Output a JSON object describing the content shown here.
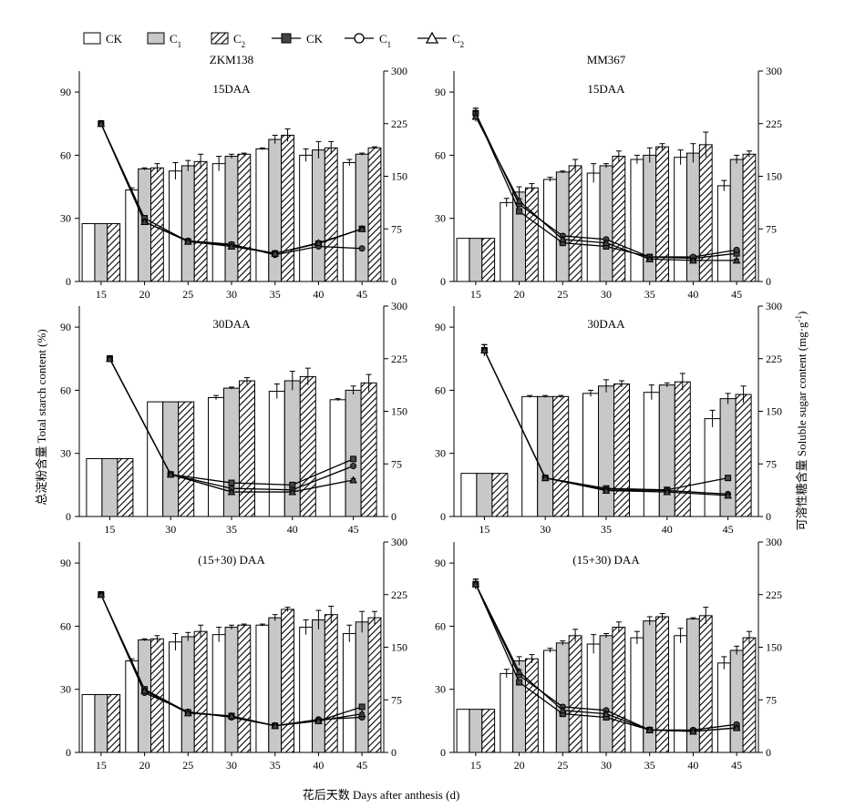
{
  "legend": {
    "bars": [
      {
        "label": "CK",
        "sub": "",
        "pattern": "white"
      },
      {
        "label": "C",
        "sub": "1",
        "pattern": "gray"
      },
      {
        "label": "C",
        "sub": "2",
        "pattern": "hatch"
      }
    ],
    "lines": [
      {
        "label": "CK",
        "sub": "",
        "marker": "square"
      },
      {
        "label": "C",
        "sub": "1",
        "marker": "circle"
      },
      {
        "label": "C",
        "sub": "2",
        "marker": "triangle"
      }
    ]
  },
  "varieties": [
    "ZKM138",
    "MM367"
  ],
  "axes": {
    "left_ticks": [
      "0",
      "30",
      "60",
      "90"
    ],
    "right_ticks": [
      "0",
      "75",
      "150",
      "225",
      "300"
    ],
    "left_label": "总淀粉含量 Total starch content (%)",
    "right_label_main": "可溶性糖含量 Soluble sugar content (mg·g",
    "right_label_sup": "-1",
    "right_label_end": ")",
    "x_label": "花后天数 Days after anthesis (d)"
  },
  "colors": {
    "bar_gray": "#c8c8c8",
    "line_fill": "#444444",
    "stroke": "#000000"
  },
  "chart_data": [
    {
      "type": "bar",
      "panel": "15DAA",
      "variety": "ZKM138",
      "title": "15DAA",
      "categories": [
        "15",
        "20",
        "25",
        "30",
        "35",
        "40",
        "45"
      ],
      "ylim": [
        0,
        100
      ],
      "y2lim": [
        0,
        300
      ],
      "bars": [
        {
          "name": "CK",
          "values": [
            27.5,
            43.5,
            52.5,
            56,
            63,
            60,
            56.5
          ],
          "errors": [
            0,
            1,
            4,
            3.5,
            0.5,
            3,
            1.5
          ]
        },
        {
          "name": "C1",
          "values": [
            27.5,
            53.5,
            55,
            59.5,
            67.5,
            62.5,
            60.5
          ],
          "errors": [
            0,
            0.5,
            2.5,
            1,
            2,
            4,
            0.5
          ]
        },
        {
          "name": "C2",
          "values": [
            27.5,
            54,
            57,
            60.5,
            69.5,
            63.5,
            63.5
          ],
          "errors": [
            0,
            2,
            3.5,
            0.5,
            3,
            3,
            0.5
          ]
        }
      ],
      "lines": [
        {
          "name": "CK",
          "values": [
            225,
            90,
            57,
            52,
            40,
            54,
            75
          ],
          "errors": [
            4,
            4,
            2,
            2,
            2,
            2,
            2
          ]
        },
        {
          "name": "C1",
          "values": [
            225,
            85,
            58,
            53,
            38,
            50,
            47
          ],
          "errors": [
            4,
            3,
            2,
            2,
            2,
            2,
            2
          ]
        },
        {
          "name": "C2",
          "values": [
            225,
            85,
            57,
            50,
            40,
            55,
            75
          ],
          "errors": [
            4,
            3,
            2,
            2,
            2,
            2,
            2
          ]
        }
      ]
    },
    {
      "type": "bar",
      "panel": "15DAA",
      "variety": "MM367",
      "title": "15DAA",
      "categories": [
        "15",
        "20",
        "25",
        "30",
        "35",
        "40",
        "45"
      ],
      "ylim": [
        0,
        100
      ],
      "y2lim": [
        0,
        300
      ],
      "bars": [
        {
          "name": "CK",
          "values": [
            20.5,
            37.5,
            48.5,
            51.5,
            58,
            59,
            45.5
          ],
          "errors": [
            0,
            2,
            1,
            4.5,
            2,
            3.5,
            2.5
          ]
        },
        {
          "name": "C1",
          "values": [
            20.5,
            42.5,
            52,
            55,
            60,
            61,
            58
          ],
          "errors": [
            0,
            2.5,
            0.5,
            1,
            3.5,
            4.5,
            2
          ]
        },
        {
          "name": "C2",
          "values": [
            20.5,
            44.5,
            55,
            59.5,
            64,
            65,
            60.5
          ],
          "errors": [
            0,
            2,
            3,
            2.5,
            1.5,
            6,
            1.5
          ]
        }
      ],
      "lines": [
        {
          "name": "CK",
          "values": [
            240,
            100,
            55,
            50,
            35,
            33,
            40
          ],
          "errors": [
            7,
            3,
            3,
            2,
            2,
            2,
            2
          ]
        },
        {
          "name": "C1",
          "values": [
            240,
            110,
            65,
            60,
            35,
            35,
            45
          ],
          "errors": [
            7,
            3,
            3,
            2,
            2,
            2,
            2
          ]
        },
        {
          "name": "C2",
          "values": [
            235,
            115,
            60,
            55,
            32,
            30,
            30
          ],
          "errors": [
            7,
            3,
            3,
            2,
            2,
            2,
            2
          ]
        }
      ]
    },
    {
      "type": "bar",
      "panel": "30DAA",
      "variety": "ZKM138",
      "title": "30DAA",
      "categories": [
        "15",
        "30",
        "35",
        "40",
        "45"
      ],
      "ylim": [
        0,
        100
      ],
      "y2lim": [
        0,
        300
      ],
      "bars": [
        {
          "name": "CK",
          "values": [
            27.5,
            54.5,
            56.5,
            59.5,
            55.5
          ],
          "errors": [
            0,
            0,
            1,
            3.5,
            0.5
          ]
        },
        {
          "name": "C1",
          "values": [
            27.5,
            54.5,
            61,
            64.5,
            60
          ],
          "errors": [
            0,
            0,
            0.5,
            4.5,
            2
          ]
        },
        {
          "name": "C2",
          "values": [
            27.5,
            54.5,
            64.5,
            66.5,
            63.5
          ],
          "errors": [
            0,
            0,
            1.5,
            4,
            4
          ]
        }
      ],
      "lines": [
        {
          "name": "CK",
          "values": [
            225,
            60,
            48,
            45,
            82
          ],
          "errors": [
            4,
            2,
            2,
            2,
            2
          ]
        },
        {
          "name": "C1",
          "values": [
            225,
            60,
            40,
            38,
            72
          ],
          "errors": [
            4,
            2,
            2,
            2,
            2
          ]
        },
        {
          "name": "C2",
          "values": [
            225,
            60,
            35,
            35,
            52
          ],
          "errors": [
            4,
            2,
            2,
            2,
            2
          ]
        }
      ]
    },
    {
      "type": "bar",
      "panel": "30DAA",
      "variety": "MM367",
      "title": "30DAA",
      "categories": [
        "15",
        "30",
        "35",
        "40",
        "45"
      ],
      "ylim": [
        0,
        100
      ],
      "y2lim": [
        0,
        300
      ],
      "bars": [
        {
          "name": "CK",
          "values": [
            20.5,
            57,
            58.5,
            59,
            46.5
          ],
          "errors": [
            0,
            0.5,
            1.5,
            3.5,
            4
          ]
        },
        {
          "name": "C1",
          "values": [
            20.5,
            57,
            62,
            62.5,
            56
          ],
          "errors": [
            0,
            0.5,
            3,
            1,
            2.5
          ]
        },
        {
          "name": "C2",
          "values": [
            20.5,
            57,
            63,
            64,
            58
          ],
          "errors": [
            0,
            0.5,
            1.5,
            4,
            4
          ]
        }
      ],
      "lines": [
        {
          "name": "CK",
          "values": [
            237,
            55,
            40,
            38,
            55
          ],
          "errors": [
            8,
            2,
            2,
            2,
            2
          ]
        },
        {
          "name": "C1",
          "values": [
            237,
            55,
            38,
            37,
            32
          ],
          "errors": [
            8,
            2,
            2,
            2,
            2
          ]
        },
        {
          "name": "C2",
          "values": [
            237,
            55,
            37,
            35,
            30
          ],
          "errors": [
            8,
            2,
            2,
            2,
            2
          ]
        }
      ]
    },
    {
      "type": "bar",
      "panel": "(15+30) DAA",
      "variety": "ZKM138",
      "title": "(15+30) DAA",
      "categories": [
        "15",
        "20",
        "25",
        "30",
        "35",
        "40",
        "45"
      ],
      "ylim": [
        0,
        100
      ],
      "y2lim": [
        0,
        300
      ],
      "bars": [
        {
          "name": "CK",
          "values": [
            27.5,
            43.5,
            52.5,
            56,
            60.5,
            59.5,
            56.5
          ],
          "errors": [
            0,
            1,
            4,
            3.5,
            0.5,
            3.5,
            4
          ]
        },
        {
          "name": "C1",
          "values": [
            27.5,
            53.5,
            55,
            59.5,
            64,
            63,
            62
          ],
          "errors": [
            0,
            0.5,
            2,
            1,
            1.5,
            4.5,
            5
          ]
        },
        {
          "name": "C2",
          "values": [
            27.5,
            54,
            57.5,
            60.5,
            68,
            65.5,
            64
          ],
          "errors": [
            0,
            1.5,
            3,
            0.5,
            1,
            4,
            3
          ]
        }
      ],
      "lines": [
        {
          "name": "CK",
          "values": [
            225,
            90,
            57,
            52,
            38,
            45,
            65
          ],
          "errors": [
            4,
            3,
            2,
            2,
            2,
            2,
            2
          ]
        },
        {
          "name": "C1",
          "values": [
            225,
            85,
            58,
            50,
            38,
            47,
            50
          ],
          "errors": [
            4,
            3,
            2,
            2,
            2,
            2,
            2
          ]
        },
        {
          "name": "C2",
          "values": [
            225,
            88,
            56,
            52,
            38,
            45,
            55
          ],
          "errors": [
            4,
            3,
            2,
            2,
            2,
            2,
            2
          ]
        }
      ]
    },
    {
      "type": "bar",
      "panel": "(15+30) DAA",
      "variety": "MM367",
      "title": "(15+30) DAA",
      "categories": [
        "15",
        "20",
        "25",
        "30",
        "35",
        "40",
        "45"
      ],
      "ylim": [
        0,
        100
      ],
      "y2lim": [
        0,
        300
      ],
      "bars": [
        {
          "name": "CK",
          "values": [
            20.5,
            37.5,
            48.5,
            51.5,
            54.5,
            55.5,
            42.5
          ],
          "errors": [
            0,
            2,
            1,
            4.5,
            3,
            3.5,
            3
          ]
        },
        {
          "name": "C1",
          "values": [
            20.5,
            43.5,
            52,
            55.5,
            62.5,
            63.5,
            48.5
          ],
          "errors": [
            0,
            2,
            1,
            1,
            2,
            0.5,
            2
          ]
        },
        {
          "name": "C2",
          "values": [
            20.5,
            44.5,
            55.5,
            59.5,
            64.5,
            65,
            54.5
          ],
          "errors": [
            0,
            2,
            3,
            2.5,
            1.5,
            4,
            3
          ]
        }
      ],
      "lines": [
        {
          "name": "CK",
          "values": [
            240,
            100,
            55,
            50,
            32,
            30,
            35
          ],
          "errors": [
            7,
            3,
            3,
            2,
            2,
            2,
            2
          ]
        },
        {
          "name": "C1",
          "values": [
            240,
            110,
            65,
            60,
            32,
            32,
            40
          ],
          "errors": [
            7,
            3,
            3,
            2,
            2,
            2,
            2
          ]
        },
        {
          "name": "C2",
          "values": [
            240,
            115,
            60,
            55,
            32,
            30,
            35
          ],
          "errors": [
            7,
            3,
            3,
            2,
            2,
            2,
            2
          ]
        }
      ]
    }
  ]
}
